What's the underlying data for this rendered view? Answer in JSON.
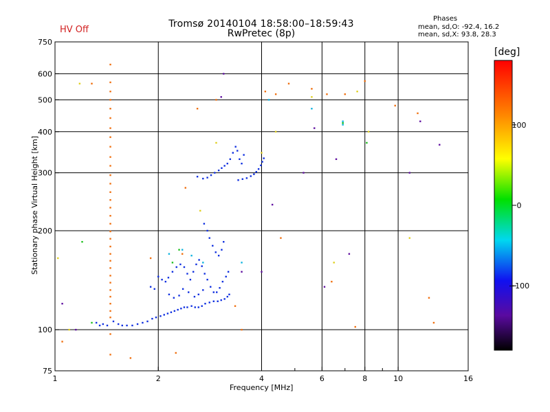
{
  "header": {
    "title": "Tromsø 20140104 18:58:00–18:59:43",
    "subtitle": "RwPretec (8p)",
    "status": "HV Off",
    "phases_title": "Phases",
    "phases_o": "mean, sd,O: -92.4, 16.2",
    "phases_x": "mean, sd,X:  93.8, 28.3"
  },
  "colorbar": {
    "unit": "[deg]",
    "ticks": [
      {
        "value": 100,
        "label": "100"
      },
      {
        "value": 0,
        "label": "0"
      },
      {
        "value": -100,
        "label": "−100"
      }
    ],
    "range": [
      -180,
      180
    ]
  },
  "colors": {
    "o_trace": "#1030e0",
    "x_trace": "#f07010",
    "text": "#000000",
    "status": "#d22020"
  },
  "chart_data": {
    "type": "scatter",
    "title": "Tromsø 20140104 18:58:00–18:59:43",
    "subtitle": "RwPretec (8p)",
    "xlabel": "Frequency [MHz]",
    "ylabel": "Stationary phase Virtual Height [km]",
    "x_scale": "log",
    "y_scale": "log",
    "xlim": [
      1,
      16
    ],
    "ylim": [
      75,
      750
    ],
    "xticks": [
      {
        "value": 1,
        "label": "1"
      },
      {
        "value": 2,
        "label": "2"
      },
      {
        "value": 4,
        "label": "4"
      },
      {
        "value": 6,
        "label": "6"
      },
      {
        "value": 8,
        "label": "8"
      },
      {
        "value": 10,
        "label": "10"
      },
      {
        "value": 16,
        "label": "16"
      }
    ],
    "xgrid": [
      2,
      4,
      6,
      8,
      10
    ],
    "xminor": [
      5,
      7,
      9
    ],
    "yticks": [
      {
        "value": 75,
        "label": "75"
      },
      {
        "value": 100,
        "label": "100"
      },
      {
        "value": 200,
        "label": "200"
      },
      {
        "value": 300,
        "label": "300"
      },
      {
        "value": 400,
        "label": "400"
      },
      {
        "value": 500,
        "label": "500"
      },
      {
        "value": 600,
        "label": "600"
      },
      {
        "value": 750,
        "label": "750"
      }
    ],
    "ygrid": [
      100,
      200,
      300,
      400,
      500,
      600
    ],
    "grid": true,
    "series": [
      {
        "color": "#1030e0",
        "points": [
          [
            1.32,
            105
          ],
          [
            1.35,
            103
          ],
          [
            1.38,
            104
          ],
          [
            1.42,
            103
          ],
          [
            1.48,
            106
          ],
          [
            1.53,
            104
          ],
          [
            1.57,
            103
          ],
          [
            1.62,
            103
          ],
          [
            1.68,
            103
          ],
          [
            1.74,
            104
          ],
          [
            1.8,
            105
          ],
          [
            1.86,
            106
          ],
          [
            1.92,
            108
          ],
          [
            1.97,
            109
          ],
          [
            2.03,
            110
          ],
          [
            2.08,
            111
          ],
          [
            2.13,
            112
          ],
          [
            2.18,
            113
          ],
          [
            2.23,
            114
          ],
          [
            2.28,
            115
          ],
          [
            2.33,
            116
          ],
          [
            2.38,
            117
          ],
          [
            2.43,
            117
          ],
          [
            2.5,
            118
          ],
          [
            2.56,
            117
          ],
          [
            2.62,
            117
          ],
          [
            2.68,
            118
          ],
          [
            2.74,
            120
          ],
          [
            2.82,
            121
          ],
          [
            2.9,
            122
          ],
          [
            2.98,
            122
          ],
          [
            3.05,
            123
          ],
          [
            3.12,
            124
          ],
          [
            3.18,
            126
          ],
          [
            3.22,
            128
          ],
          [
            2.0,
            145
          ],
          [
            2.05,
            142
          ],
          [
            2.1,
            140
          ],
          [
            2.14,
            144
          ],
          [
            2.2,
            150
          ],
          [
            2.26,
            155
          ],
          [
            2.32,
            158
          ],
          [
            2.38,
            155
          ],
          [
            2.43,
            148
          ],
          [
            2.48,
            142
          ],
          [
            2.53,
            150
          ],
          [
            2.58,
            158
          ],
          [
            2.63,
            163
          ],
          [
            2.68,
            156
          ],
          [
            2.73,
            148
          ],
          [
            2.78,
            142
          ],
          [
            2.84,
            135
          ],
          [
            2.9,
            130
          ],
          [
            2.96,
            130
          ],
          [
            3.02,
            134
          ],
          [
            3.08,
            140
          ],
          [
            3.15,
            145
          ],
          [
            3.2,
            150
          ],
          [
            1.9,
            135
          ],
          [
            1.95,
            133
          ],
          [
            2.15,
            128
          ],
          [
            2.22,
            125
          ],
          [
            2.3,
            127
          ],
          [
            2.36,
            133
          ],
          [
            2.45,
            130
          ],
          [
            2.55,
            126
          ],
          [
            2.62,
            128
          ],
          [
            2.7,
            132
          ],
          [
            2.72,
            210
          ],
          [
            2.78,
            200
          ],
          [
            2.82,
            190
          ],
          [
            2.88,
            180
          ],
          [
            2.94,
            172
          ],
          [
            3.0,
            168
          ],
          [
            3.06,
            175
          ],
          [
            3.1,
            185
          ],
          [
            2.6,
            292
          ],
          [
            2.7,
            288
          ],
          [
            2.78,
            290
          ],
          [
            2.85,
            295
          ],
          [
            2.92,
            300
          ],
          [
            3.0,
            305
          ],
          [
            3.06,
            310
          ],
          [
            3.12,
            315
          ],
          [
            3.18,
            320
          ],
          [
            3.24,
            330
          ],
          [
            3.3,
            345
          ],
          [
            3.36,
            360
          ],
          [
            3.4,
            350
          ],
          [
            3.45,
            330
          ],
          [
            3.5,
            320
          ],
          [
            3.55,
            340
          ],
          [
            3.42,
            285
          ],
          [
            3.52,
            287
          ],
          [
            3.62,
            289
          ],
          [
            3.72,
            293
          ],
          [
            3.8,
            297
          ],
          [
            3.86,
            302
          ],
          [
            3.92,
            308
          ],
          [
            3.98,
            316
          ],
          [
            4.02,
            324
          ],
          [
            4.06,
            332
          ]
        ]
      },
      {
        "color": "#f07010",
        "points": [
          [
            1.45,
            640
          ],
          [
            1.45,
            565
          ],
          [
            1.45,
            530
          ],
          [
            1.45,
            500
          ],
          [
            1.45,
            470
          ],
          [
            1.45,
            440
          ],
          [
            1.45,
            410
          ],
          [
            1.45,
            385
          ],
          [
            1.45,
            360
          ],
          [
            1.45,
            335
          ],
          [
            1.45,
            315
          ],
          [
            1.45,
            295
          ],
          [
            1.45,
            278
          ],
          [
            1.45,
            262
          ],
          [
            1.45,
            248
          ],
          [
            1.45,
            235
          ],
          [
            1.45,
            222
          ],
          [
            1.45,
            210
          ],
          [
            1.45,
            199
          ],
          [
            1.45,
            189
          ],
          [
            1.45,
            179
          ],
          [
            1.45,
            170
          ],
          [
            1.45,
            162
          ],
          [
            1.45,
            154
          ],
          [
            1.45,
            146
          ],
          [
            1.45,
            139
          ],
          [
            1.45,
            132
          ],
          [
            1.45,
            126
          ],
          [
            1.45,
            120
          ],
          [
            1.45,
            114
          ],
          [
            1.45,
            109
          ],
          [
            1.45,
            97
          ],
          [
            1.45,
            84
          ],
          [
            1.28,
            560
          ],
          [
            2.6,
            470
          ],
          [
            2.95,
            500
          ],
          [
            4.4,
            520
          ],
          [
            4.8,
            560
          ],
          [
            6.2,
            520
          ],
          [
            7.0,
            520
          ],
          [
            9.8,
            480
          ],
          [
            11.4,
            455
          ],
          [
            2.4,
            270
          ],
          [
            8.0,
            570
          ],
          [
            4.1,
            530
          ],
          [
            5.6,
            540
          ],
          [
            1.05,
            92
          ],
          [
            1.66,
            82
          ],
          [
            2.25,
            85
          ],
          [
            3.5,
            100
          ],
          [
            7.5,
            102
          ],
          [
            12.3,
            125
          ],
          [
            12.7,
            105
          ],
          [
            3.35,
            118
          ],
          [
            4.55,
            190
          ],
          [
            6.4,
            140
          ],
          [
            1.9,
            165
          ],
          [
            2.35,
            170
          ]
        ]
      },
      {
        "color": "#10b4e0",
        "points": [
          [
            2.15,
            170
          ],
          [
            2.35,
            175
          ],
          [
            2.5,
            168
          ],
          [
            2.7,
            160
          ],
          [
            3.5,
            160
          ],
          [
            6.9,
            430
          ],
          [
            6.9,
            420
          ],
          [
            4.2,
            500
          ],
          [
            5.6,
            470
          ]
        ]
      },
      {
        "color": "#20c020",
        "points": [
          [
            1.2,
            185
          ],
          [
            2.3,
            175
          ],
          [
            2.2,
            160
          ],
          [
            6.9,
            425
          ],
          [
            8.1,
            370
          ],
          [
            1.28,
            105
          ]
        ]
      },
      {
        "color": "#e0d020",
        "points": [
          [
            1.18,
            560
          ],
          [
            2.95,
            370
          ],
          [
            4.4,
            400
          ],
          [
            5.6,
            510
          ],
          [
            6.5,
            160
          ],
          [
            7.6,
            530
          ],
          [
            8.2,
            400
          ],
          [
            10.8,
            190
          ],
          [
            1.02,
            165
          ],
          [
            1.1,
            100
          ],
          [
            2.65,
            230
          ],
          [
            4.0,
            345
          ]
        ]
      },
      {
        "color": "#6010a0",
        "points": [
          [
            1.05,
            120
          ],
          [
            1.15,
            100
          ],
          [
            3.1,
            600
          ],
          [
            3.05,
            510
          ],
          [
            4.0,
            150
          ],
          [
            4.3,
            240
          ],
          [
            5.3,
            300
          ],
          [
            5.7,
            410
          ],
          [
            6.6,
            330
          ],
          [
            10.8,
            300
          ],
          [
            11.6,
            430
          ],
          [
            13.2,
            365
          ],
          [
            6.1,
            135
          ],
          [
            7.2,
            170
          ],
          [
            3.5,
            150
          ]
        ]
      }
    ]
  }
}
